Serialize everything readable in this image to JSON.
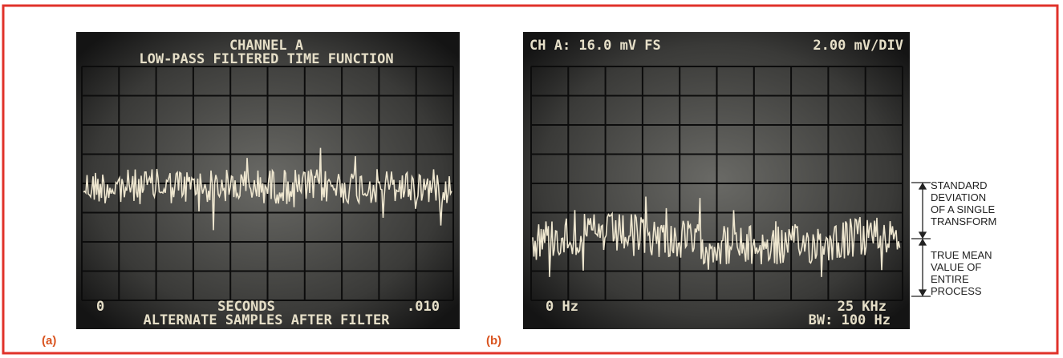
{
  "panel_a": {
    "label": "(a)",
    "title": "CHANNEL A",
    "subtitle": "LOW-PASS FILTERED TIME FUNCTION",
    "x_start": "0",
    "x_unit": "SECONDS",
    "x_end": ".010",
    "footer": "ALTERNATE SAMPLES AFTER FILTER"
  },
  "panel_b": {
    "label": "(b)",
    "header_left": "CH A: 16.0 mV FS",
    "header_right": "2.00 mV/DIV",
    "x_start": "0 Hz",
    "x_end": "25 KHz",
    "footer": "BW: 100 Hz"
  },
  "annotations": {
    "standard_deviation": [
      "STANDARD",
      "DEVIATION",
      "OF A SINGLE",
      "TRANSFORM"
    ],
    "true_mean": [
      "TRUE MEAN",
      "VALUE OF",
      "ENTIRE",
      "PROCESS"
    ]
  }
}
